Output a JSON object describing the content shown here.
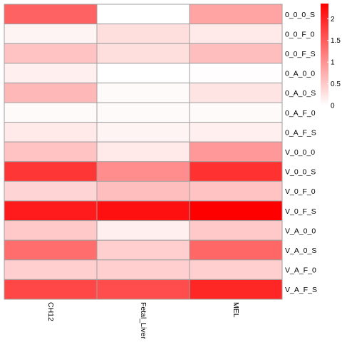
{
  "chart_data": {
    "type": "heatmap",
    "title": "",
    "columns": [
      "CH12",
      "Fetal_Liver",
      "MEL"
    ],
    "rows": [
      "0_0_0_S",
      "0_0_F_0",
      "0_0_F_S",
      "0_A_0_0",
      "0_A_0_S",
      "0_A_F_0",
      "0_A_F_S",
      "V_0_0_0",
      "V_0_0_S",
      "V_0_F_0",
      "V_0_F_S",
      "V_A_0_0",
      "V_A_0_S",
      "V_A_F_0",
      "V_A_F_S"
    ],
    "values": [
      [
        1.45,
        0.0,
        0.85
      ],
      [
        0.1,
        0.3,
        0.2
      ],
      [
        0.55,
        0.3,
        0.6
      ],
      [
        0.15,
        0.0,
        0.02
      ],
      [
        0.65,
        0.05,
        0.25
      ],
      [
        0.05,
        0.05,
        0.05
      ],
      [
        0.2,
        0.1,
        0.15
      ],
      [
        0.55,
        0.2,
        0.95
      ],
      [
        1.85,
        1.05,
        1.9
      ],
      [
        0.4,
        0.6,
        0.55
      ],
      [
        2.1,
        2.2,
        2.35
      ],
      [
        0.5,
        0.15,
        0.5
      ],
      [
        1.35,
        0.45,
        1.4
      ],
      [
        0.45,
        0.45,
        0.45
      ],
      [
        1.7,
        1.65,
        2.0
      ]
    ],
    "color_scale": {
      "min": 0,
      "max": 2.35,
      "low_color": "#ffffff",
      "high_color": "#ff0000",
      "ticks": [
        0,
        0.5,
        1,
        1.5,
        2
      ],
      "tick_labels": [
        "0",
        "0.5",
        "1",
        "1.5",
        "2"
      ]
    },
    "cell_border_color": "#a0a0a0"
  }
}
